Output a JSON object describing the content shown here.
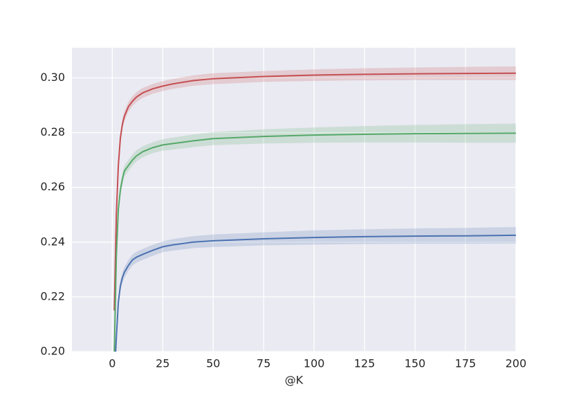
{
  "chart_data": {
    "type": "line",
    "xlabel": "@K",
    "x": [
      1,
      2,
      3,
      4,
      5,
      6,
      8,
      10,
      12,
      15,
      20,
      25,
      30,
      40,
      50,
      75,
      100,
      125,
      150,
      175,
      200
    ],
    "series": [
      {
        "color": "#c44e52",
        "values": [
          0.215,
          0.25,
          0.268,
          0.278,
          0.283,
          0.286,
          0.2895,
          0.2915,
          0.293,
          0.2945,
          0.296,
          0.297,
          0.2978,
          0.299,
          0.2997,
          0.3005,
          0.301,
          0.3013,
          0.3015,
          0.3016,
          0.3017
        ],
        "errors": [
          0.002,
          0.002,
          0.002,
          0.002,
          0.0018,
          0.0018,
          0.0018,
          0.0018,
          0.0018,
          0.0018,
          0.0018,
          0.0018,
          0.0018,
          0.0019,
          0.002,
          0.002,
          0.0021,
          0.0022,
          0.0023,
          0.0024,
          0.0025
        ]
      },
      {
        "color": "#55a868",
        "values": [
          0.199,
          0.235,
          0.252,
          0.259,
          0.263,
          0.266,
          0.268,
          0.27,
          0.2715,
          0.273,
          0.2745,
          0.2755,
          0.276,
          0.277,
          0.2778,
          0.2786,
          0.2791,
          0.2794,
          0.2796,
          0.2797,
          0.2798
        ],
        "errors": [
          0.002,
          0.002,
          0.002,
          0.002,
          0.002,
          0.002,
          0.002,
          0.002,
          0.002,
          0.002,
          0.002,
          0.0021,
          0.0022,
          0.0023,
          0.0024,
          0.0026,
          0.0028,
          0.003,
          0.0032,
          0.0034,
          0.0035
        ]
      },
      {
        "color": "#4c72b0",
        "values": [
          0.19,
          0.205,
          0.218,
          0.224,
          0.227,
          0.229,
          0.2315,
          0.2335,
          0.2345,
          0.2355,
          0.237,
          0.2383,
          0.239,
          0.24,
          0.2405,
          0.2412,
          0.2417,
          0.242,
          0.2422,
          0.2423,
          0.2425
        ],
        "errors": [
          0.002,
          0.002,
          0.002,
          0.002,
          0.002,
          0.002,
          0.002,
          0.002,
          0.002,
          0.002,
          0.002,
          0.002,
          0.0021,
          0.0022,
          0.0023,
          0.0024,
          0.0026,
          0.0027,
          0.0028,
          0.0029,
          0.003
        ]
      }
    ],
    "xlim": [
      -20,
      200
    ],
    "ylim": [
      0.2,
      0.311
    ],
    "xticks": [
      0,
      25,
      50,
      75,
      100,
      125,
      150,
      175,
      200
    ],
    "yticks": [
      {
        "value": 0.2,
        "label": "0.20"
      },
      {
        "value": 0.22,
        "label": "0.22"
      },
      {
        "value": 0.24,
        "label": "0.24"
      },
      {
        "value": 0.26,
        "label": "0.26"
      },
      {
        "value": 0.28,
        "label": "0.28"
      },
      {
        "value": 0.3,
        "label": "0.30"
      }
    ],
    "grid": true
  }
}
